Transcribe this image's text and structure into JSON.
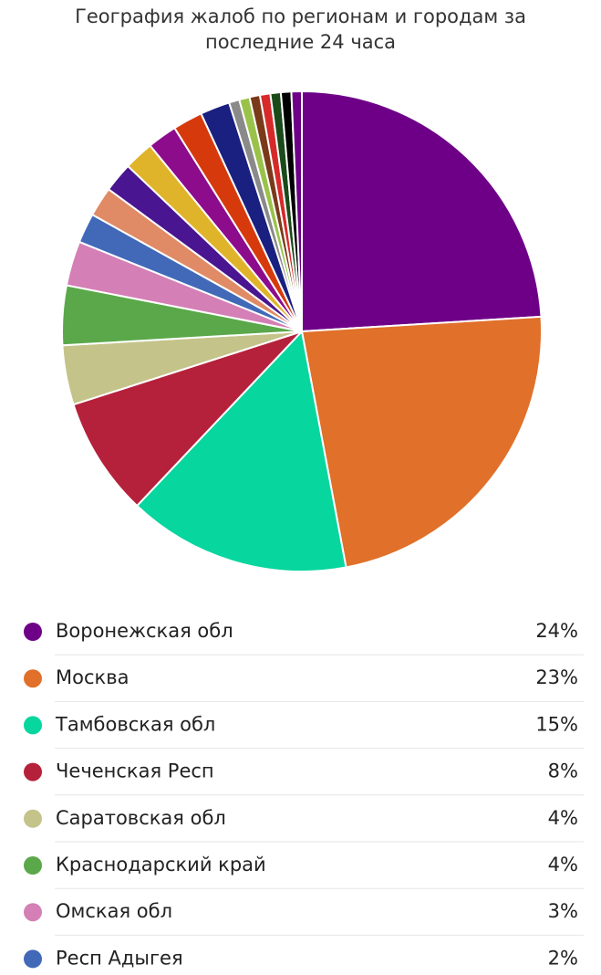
{
  "chart_data": {
    "type": "pie",
    "title": "География жалоб по регионам и городам за последние 24 часа",
    "categories": [
      "Воронежская обл",
      "Москва",
      "Тамбовская обл",
      "Чеченская Респ",
      "Саратовская обл",
      "Краснодарский край",
      "Омская обл",
      "Респ Адыгея",
      null,
      null,
      null,
      null,
      null,
      null,
      null,
      null,
      null,
      null,
      null,
      null,
      null
    ],
    "values": [
      24,
      23,
      15,
      8,
      4,
      4,
      3,
      2,
      2,
      2,
      2,
      2,
      2,
      2,
      0.7,
      0.7,
      0.7,
      0.7,
      0.7,
      0.7,
      0.7
    ],
    "value_labels": [
      "24%",
      "23%",
      "15%",
      "8%",
      "4%",
      "4%",
      "3%",
      "2%",
      null,
      null,
      null,
      null,
      null,
      null,
      null,
      null,
      null,
      null,
      null,
      null,
      null
    ],
    "colors": [
      "#6e0088",
      "#e0702a",
      "#07d69e",
      "#b5213a",
      "#c4c48a",
      "#5aa84a",
      "#d47fb5",
      "#4169b8",
      "#e08a66",
      "#4a1590",
      "#e0b42a",
      "#8c0c8c",
      "#d63a0c",
      "#1a2080",
      "#8a8a8a",
      "#9ac24a",
      "#7a3a1a",
      "#d62a2a",
      "#1a4a1a",
      "#000000",
      "#6e0088"
    ]
  }
}
